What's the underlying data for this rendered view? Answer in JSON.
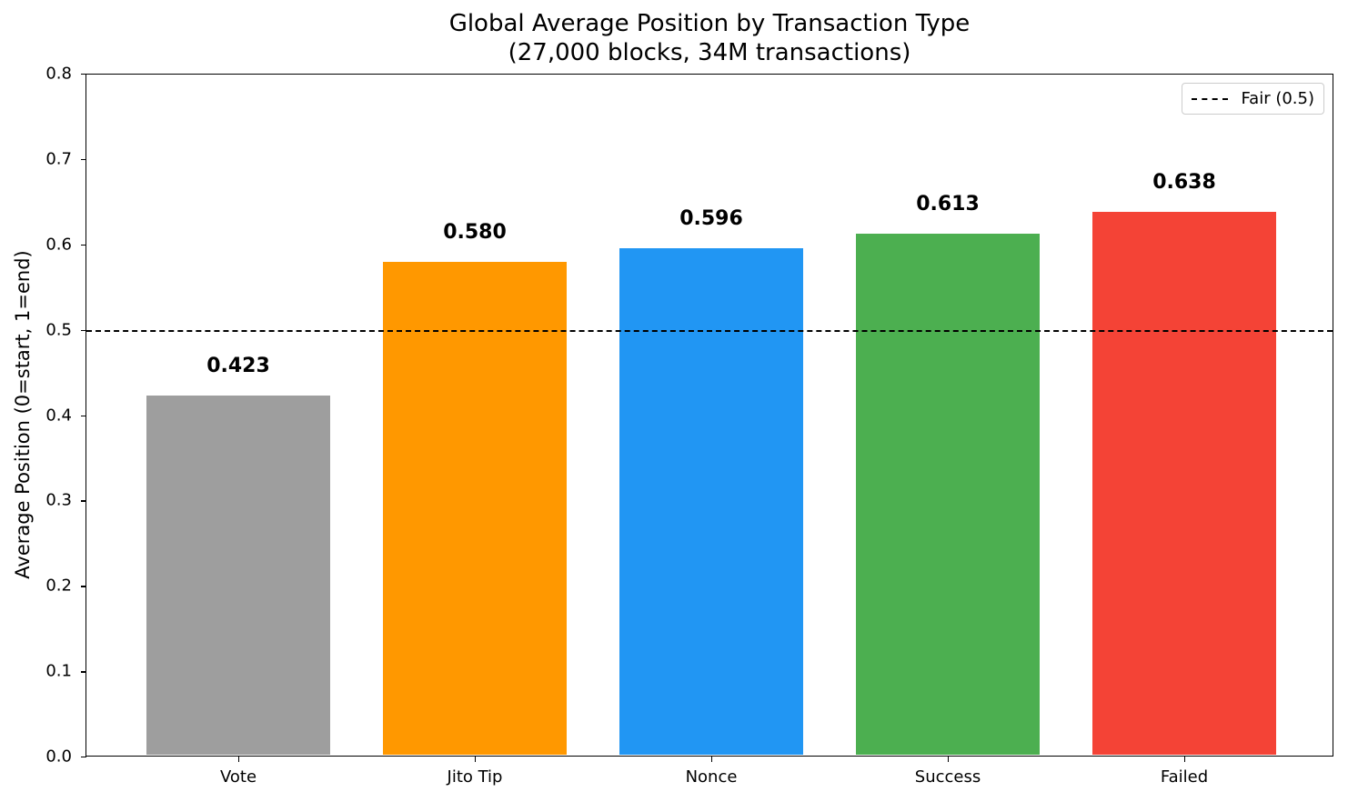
{
  "chart_data": {
    "type": "bar",
    "title": "Global Average Position by Transaction Type\n(27,000 blocks, 34M transactions)",
    "title_line1": "Global Average Position by Transaction Type",
    "title_line2": "(27,000 blocks, 34M transactions)",
    "xlabel": "",
    "ylabel": "Average Position (0=start, 1=end)",
    "ylim": [
      0,
      0.8
    ],
    "yticks": [
      "0.0",
      "0.1",
      "0.2",
      "0.3",
      "0.4",
      "0.5",
      "0.6",
      "0.7",
      "0.8"
    ],
    "categories": [
      "Vote",
      "Jito Tip",
      "Nonce",
      "Success",
      "Failed"
    ],
    "values": [
      0.423,
      0.58,
      0.596,
      0.613,
      0.638
    ],
    "value_labels": [
      "0.423",
      "0.580",
      "0.596",
      "0.613",
      "0.638"
    ],
    "colors": [
      "#9e9e9e",
      "#ff9800",
      "#2196f3",
      "#4caf50",
      "#f44336"
    ],
    "reference_line": {
      "y": 0.5,
      "style": "dashed",
      "color": "#000000",
      "label": "Fair (0.5)"
    },
    "legend": {
      "entries": [
        "Fair (0.5)"
      ],
      "position": "upper right"
    },
    "grid": false
  }
}
